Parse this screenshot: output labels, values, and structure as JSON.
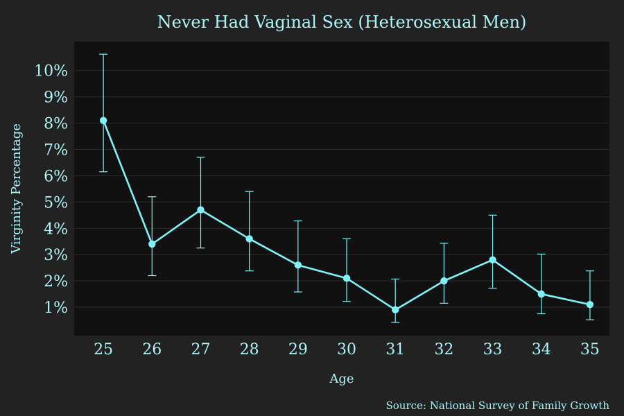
{
  "chart_data": {
    "type": "line",
    "title": "Never Had Vaginal Sex (Heterosexual Men)",
    "xlabel": "Age",
    "ylabel": "Virginity Percentage",
    "caption": "Source: National Survey of Family Growth",
    "x": [
      25,
      26,
      27,
      28,
      29,
      30,
      31,
      32,
      33,
      34,
      35
    ],
    "series": [
      {
        "values": [
          8.1,
          3.4,
          4.7,
          3.6,
          2.6,
          2.1,
          0.9,
          2.0,
          2.8,
          1.5,
          1.1
        ],
        "lower": [
          6.15,
          2.2,
          3.25,
          2.38,
          1.58,
          1.22,
          0.42,
          1.15,
          1.72,
          0.75,
          0.52
        ],
        "upper": [
          10.62,
          5.2,
          6.7,
          5.4,
          4.28,
          3.6,
          2.07,
          3.43,
          4.5,
          3.02,
          2.38
        ]
      }
    ],
    "yticks": [
      1,
      2,
      3,
      4,
      5,
      6,
      7,
      8,
      9,
      10
    ],
    "ytick_labels": [
      "1%",
      "2%",
      "3%",
      "4%",
      "5%",
      "6%",
      "7%",
      "8%",
      "9%",
      "10%"
    ],
    "xtick_labels": [
      "25",
      "26",
      "27",
      "28",
      "29",
      "30",
      "31",
      "32",
      "33",
      "34",
      "35"
    ],
    "xlim": [
      24.4,
      35.4
    ],
    "ylim": [
      -0.08,
      11.1
    ],
    "grid": true,
    "colors": {
      "background": "#222222",
      "panel": "#111111",
      "grid": "#2e2e2e",
      "accent": "#7ff3f8",
      "text": "#aef4f8"
    }
  }
}
